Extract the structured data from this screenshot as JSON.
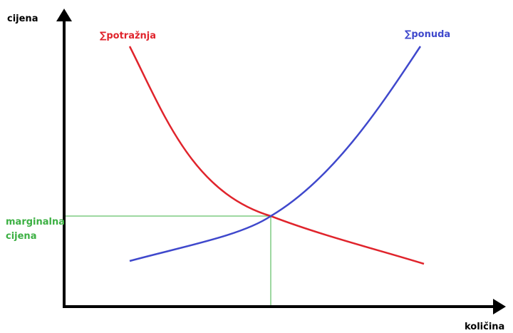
{
  "y_axis_label": "cijena",
  "x_axis_label": "količina",
  "demand_label": "∑potražnja",
  "supply_label": "∑ponuda",
  "marginal_label": [
    "marginalna",
    "cijena"
  ]
}
